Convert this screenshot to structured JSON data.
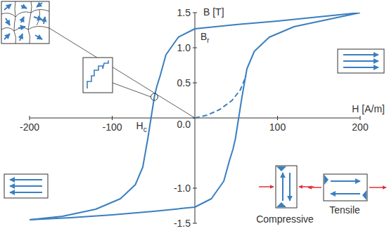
{
  "chart_data": {
    "type": "line",
    "x_label": "H [A/m]",
    "y_label": "B [T]",
    "xlim": [
      -200,
      200
    ],
    "ylim": [
      -1.5,
      1.5
    ],
    "xticks": [
      -200,
      -100,
      100,
      200
    ],
    "yticks": [
      -1.5,
      {
        "value": -1.0,
        "label": "-1.0"
      },
      {
        "value": 0.0,
        "label": "0.0"
      },
      0.5,
      {
        "value": 1.0,
        "label": "1.0"
      },
      1.5
    ],
    "grid": false,
    "series": [
      {
        "color": "#3a7fc0",
        "line_style": "solid",
        "x": [
          200,
          150,
          100,
          50,
          0,
          -20,
          -35,
          -42,
          -46,
          -49,
          -53,
          -57,
          -63,
          -72,
          -90,
          -120,
          -160,
          -200
        ],
        "values": [
          1.5,
          1.44,
          1.38,
          1.33,
          1.27,
          1.15,
          0.9,
          0.6,
          0.45,
          0.3,
          0.0,
          -0.3,
          -0.7,
          -0.95,
          -1.15,
          -1.3,
          -1.4,
          -1.45
        ]
      },
      {
        "color": "#3a7fc0",
        "line_style": "solid",
        "x": [
          -200,
          -150,
          -100,
          -50,
          0,
          20,
          35,
          42,
          46,
          49,
          53,
          57,
          63,
          72,
          90,
          120,
          160,
          200
        ],
        "values": [
          -1.45,
          -1.42,
          -1.38,
          -1.33,
          -1.27,
          -1.15,
          -0.9,
          -0.6,
          -0.45,
          -0.3,
          0.0,
          0.3,
          0.7,
          0.95,
          1.15,
          1.3,
          1.4,
          1.5
        ]
      },
      {
        "color": "#3a7fc0",
        "line_style": "dashed",
        "x": [
          0,
          15,
          30,
          45,
          55,
          62
        ],
        "values": [
          0.0,
          0.04,
          0.12,
          0.25,
          0.4,
          0.6
        ]
      }
    ],
    "annotations": [
      {
        "text": "B",
        "subscript": "r"
      },
      {
        "text": "H",
        "subscript": "c"
      },
      {
        "text": "Compressive"
      },
      {
        "text": "Tensile"
      }
    ]
  }
}
